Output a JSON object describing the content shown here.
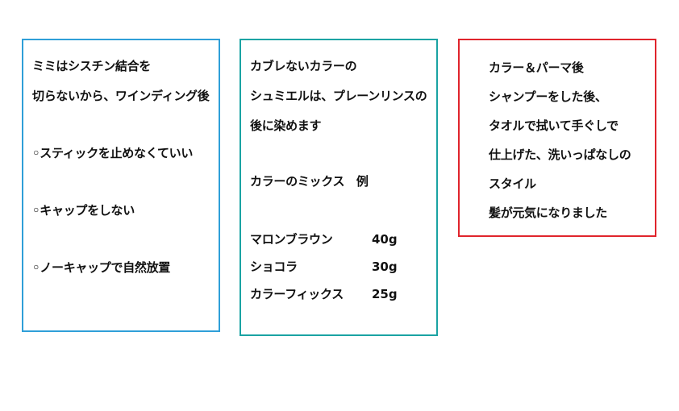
{
  "colors": {
    "left_border": "#2f9fd8",
    "middle_border": "#1aa3a3",
    "right_border": "#e0242c"
  },
  "left_box": {
    "line1": "ミミはシスチン結合を",
    "line2": "切らないから、ワインディング後",
    "item1": "◦スティックを止めなくていい",
    "item2": "◦キャップをしない",
    "item3": "◦ノーキャップで自然放置"
  },
  "middle_box": {
    "line1": "カブレないカラーの",
    "line2": "シュミエルは、プレーンリンスの",
    "line3": "後に染めます",
    "mix_heading": "カラーのミックス　例",
    "mix": [
      {
        "name": "マロンブラウン",
        "amount": "40g"
      },
      {
        "name": "ショコラ",
        "amount": "30g"
      },
      {
        "name": "カラーフィックス",
        "amount": "25g"
      }
    ]
  },
  "right_box": {
    "line1": "カラー＆パーマ後",
    "line2": "シャンプーをした後、",
    "line3": "タオルで拭いて手ぐしで",
    "line4": "仕上げた、洗いっぱなしの",
    "line5": "スタイル",
    "line6": "髪が元気になりました"
  }
}
